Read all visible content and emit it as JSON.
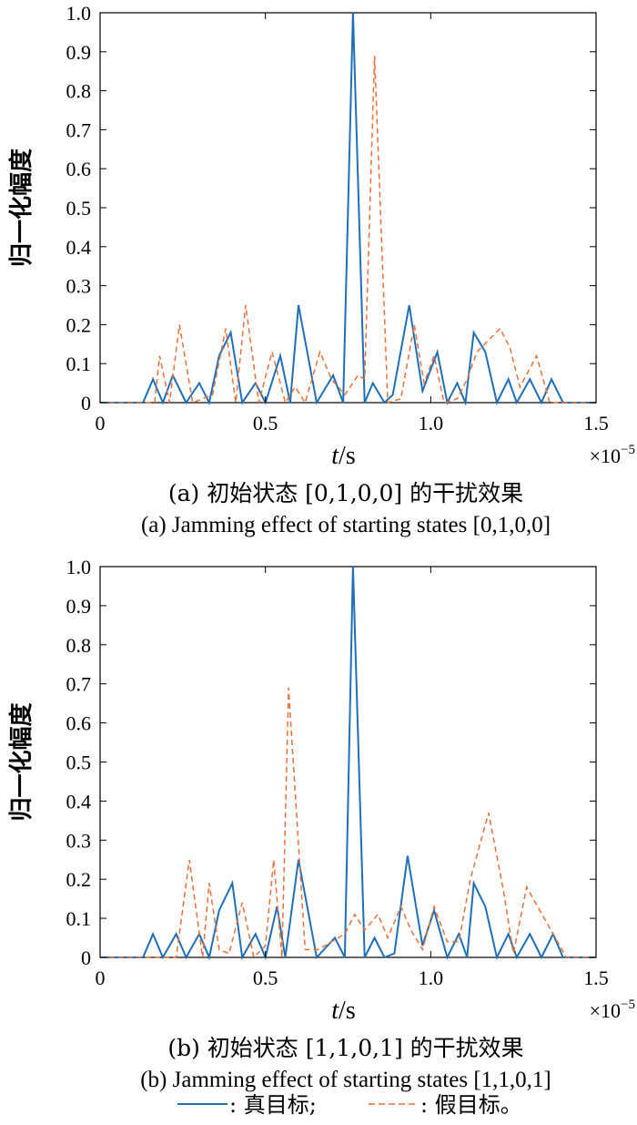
{
  "chart_data": [
    {
      "type": "line",
      "caption_zh": "(a) 初始状态 [0,1,0,0] 的干扰效果",
      "caption_en": "(a) Jamming effect of starting states [0,1,0,0]",
      "ylabel": "归一化幅度",
      "xlabel_italic": "t",
      "xlabel_unit": "/s",
      "x_multiplier": "×10",
      "x_multiplier_exp": "−5",
      "xlim": [
        0,
        1.5
      ],
      "ylim": [
        0,
        1.0
      ],
      "x_ticks": [
        "0",
        "0.5",
        "1.0",
        "1.5"
      ],
      "y_ticks": [
        "0",
        "0.1",
        "0.2",
        "0.3",
        "0.4",
        "0.5",
        "0.6",
        "0.7",
        "0.8",
        "0.9",
        "1.0"
      ],
      "series": [
        {
          "name": "真目标",
          "color": "#1f6fb8",
          "dash": "solid",
          "points": [
            [
              0,
              0
            ],
            [
              0.13,
              0
            ],
            [
              0.16,
              0.06
            ],
            [
              0.19,
              0
            ],
            [
              0.22,
              0.07
            ],
            [
              0.26,
              0
            ],
            [
              0.3,
              0.05
            ],
            [
              0.33,
              0
            ],
            [
              0.36,
              0.12
            ],
            [
              0.395,
              0.18
            ],
            [
              0.43,
              0
            ],
            [
              0.47,
              0.05
            ],
            [
              0.5,
              0
            ],
            [
              0.545,
              0.12
            ],
            [
              0.575,
              0
            ],
            [
              0.6,
              0.25
            ],
            [
              0.655,
              0
            ],
            [
              0.705,
              0.07
            ],
            [
              0.735,
              0
            ],
            [
              0.765,
              1.0
            ],
            [
              0.8,
              0
            ],
            [
              0.825,
              0.05
            ],
            [
              0.86,
              0
            ],
            [
              0.885,
              0.02
            ],
            [
              0.935,
              0.25
            ],
            [
              0.975,
              0.03
            ],
            [
              1.02,
              0.13
            ],
            [
              1.05,
              0
            ],
            [
              1.08,
              0.05
            ],
            [
              1.105,
              0
            ],
            [
              1.13,
              0.18
            ],
            [
              1.165,
              0.13
            ],
            [
              1.2,
              0
            ],
            [
              1.235,
              0.06
            ],
            [
              1.26,
              0
            ],
            [
              1.3,
              0.06
            ],
            [
              1.335,
              0
            ],
            [
              1.365,
              0.06
            ],
            [
              1.4,
              0
            ],
            [
              1.5,
              0
            ]
          ]
        },
        {
          "name": "假目标",
          "color": "#e8703a",
          "dash": "dashed",
          "points": [
            [
              0,
              0
            ],
            [
              0.165,
              0
            ],
            [
              0.18,
              0.12
            ],
            [
              0.21,
              0
            ],
            [
              0.24,
              0.2
            ],
            [
              0.28,
              0
            ],
            [
              0.34,
              0.02
            ],
            [
              0.38,
              0.19
            ],
            [
              0.41,
              0
            ],
            [
              0.44,
              0.25
            ],
            [
              0.48,
              0
            ],
            [
              0.52,
              0.13
            ],
            [
              0.56,
              0
            ],
            [
              0.59,
              0.04
            ],
            [
              0.62,
              0
            ],
            [
              0.665,
              0.13
            ],
            [
              0.7,
              0.06
            ],
            [
              0.74,
              0.02
            ],
            [
              0.78,
              0.07
            ],
            [
              0.8,
              0.06
            ],
            [
              0.83,
              0.89
            ],
            [
              0.87,
              0
            ],
            [
              0.91,
              0.01
            ],
            [
              0.95,
              0.2
            ],
            [
              0.98,
              0.05
            ],
            [
              1.01,
              0.12
            ],
            [
              1.04,
              0
            ],
            [
              1.08,
              0.01
            ],
            [
              1.11,
              0.06
            ],
            [
              1.14,
              0.13
            ],
            [
              1.175,
              0.16
            ],
            [
              1.21,
              0.19
            ],
            [
              1.24,
              0.14
            ],
            [
              1.27,
              0.04
            ],
            [
              1.32,
              0.12
            ],
            [
              1.36,
              0
            ],
            [
              1.42,
              0
            ],
            [
              1.5,
              0
            ]
          ]
        }
      ]
    },
    {
      "type": "line",
      "caption_zh": "(b) 初始状态 [1,1,0,1] 的干扰效果",
      "caption_en": "(b) Jamming effect of starting states [1,1,0,1]",
      "ylabel": "归一化幅度",
      "xlabel_italic": "t",
      "xlabel_unit": "/s",
      "x_multiplier": "×10",
      "x_multiplier_exp": "−5",
      "xlim": [
        0,
        1.5
      ],
      "ylim": [
        0,
        1.0
      ],
      "x_ticks": [
        "0",
        "0.5",
        "1.0",
        "1.5"
      ],
      "y_ticks": [
        "0",
        "0.1",
        "0.2",
        "0.3",
        "0.4",
        "0.5",
        "0.6",
        "0.7",
        "0.8",
        "0.9",
        "1.0"
      ],
      "series": [
        {
          "name": "真目标",
          "color": "#1f6fb8",
          "dash": "solid",
          "points": [
            [
              0,
              0
            ],
            [
              0.13,
              0
            ],
            [
              0.16,
              0.06
            ],
            [
              0.19,
              0
            ],
            [
              0.23,
              0.06
            ],
            [
              0.26,
              0
            ],
            [
              0.3,
              0.06
            ],
            [
              0.33,
              0
            ],
            [
              0.36,
              0.12
            ],
            [
              0.4,
              0.19
            ],
            [
              0.43,
              0
            ],
            [
              0.47,
              0.06
            ],
            [
              0.5,
              0
            ],
            [
              0.535,
              0.13
            ],
            [
              0.56,
              0
            ],
            [
              0.6,
              0.25
            ],
            [
              0.655,
              0
            ],
            [
              0.71,
              0.05
            ],
            [
              0.74,
              0
            ],
            [
              0.765,
              1.0
            ],
            [
              0.8,
              0
            ],
            [
              0.83,
              0.05
            ],
            [
              0.86,
              0
            ],
            [
              0.89,
              0.01
            ],
            [
              0.93,
              0.26
            ],
            [
              0.975,
              0.03
            ],
            [
              1.01,
              0.12
            ],
            [
              1.05,
              0
            ],
            [
              1.085,
              0.06
            ],
            [
              1.11,
              0
            ],
            [
              1.13,
              0.19
            ],
            [
              1.165,
              0.13
            ],
            [
              1.2,
              0
            ],
            [
              1.235,
              0.06
            ],
            [
              1.26,
              0
            ],
            [
              1.3,
              0.06
            ],
            [
              1.335,
              0
            ],
            [
              1.37,
              0.06
            ],
            [
              1.4,
              0
            ],
            [
              1.5,
              0
            ]
          ]
        },
        {
          "name": "假目标",
          "color": "#e8703a",
          "dash": "dashed",
          "points": [
            [
              0,
              0
            ],
            [
              0.23,
              0
            ],
            [
              0.27,
              0.25
            ],
            [
              0.31,
              0
            ],
            [
              0.33,
              0.19
            ],
            [
              0.36,
              0.02
            ],
            [
              0.39,
              0.01
            ],
            [
              0.43,
              0.14
            ],
            [
              0.465,
              0
            ],
            [
              0.5,
              0.03
            ],
            [
              0.525,
              0.25
            ],
            [
              0.55,
              0
            ],
            [
              0.57,
              0.69
            ],
            [
              0.62,
              0.02
            ],
            [
              0.66,
              0.02
            ],
            [
              0.7,
              0.04
            ],
            [
              0.74,
              0.06
            ],
            [
              0.77,
              0.11
            ],
            [
              0.8,
              0.07
            ],
            [
              0.84,
              0.11
            ],
            [
              0.87,
              0.05
            ],
            [
              0.91,
              0.13
            ],
            [
              0.94,
              0.07
            ],
            [
              0.975,
              0.02
            ],
            [
              1.01,
              0.13
            ],
            [
              1.05,
              0.04
            ],
            [
              1.085,
              0.04
            ],
            [
              1.12,
              0.2
            ],
            [
              1.175,
              0.37
            ],
            [
              1.22,
              0.17
            ],
            [
              1.25,
              0.01
            ],
            [
              1.29,
              0.18
            ],
            [
              1.33,
              0.12
            ],
            [
              1.37,
              0.06
            ],
            [
              1.41,
              0
            ],
            [
              1.5,
              0
            ]
          ]
        }
      ]
    }
  ],
  "legend": {
    "true_label": ": 真目标;",
    "false_label": ": 假目标。"
  }
}
